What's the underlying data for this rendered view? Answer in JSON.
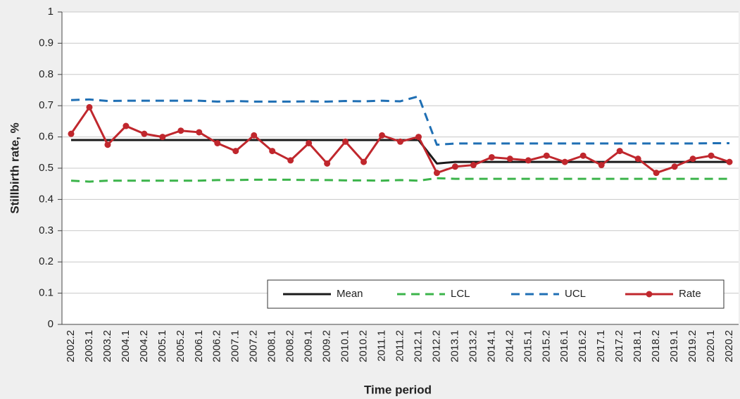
{
  "chart_data": {
    "type": "line",
    "y_label": "Stillbirth rate, %",
    "x_label": "Time period",
    "categories": [
      "2002.2",
      "2003.1",
      "2003.2",
      "2004.1",
      "2004.2",
      "2005.1",
      "2005.2",
      "2006.1",
      "2006.2",
      "2007.1",
      "2007.2",
      "2008.1",
      "2008.2",
      "2009.1",
      "2009.2",
      "2010.1",
      "2010.2",
      "2011.1",
      "2011.2",
      "2012.1",
      "2012.2",
      "2013.1",
      "2013.2",
      "2014.1",
      "2014.2",
      "2015.1",
      "2015.2",
      "2016.1",
      "2016.2",
      "2017.1",
      "2017.2",
      "2018.1",
      "2018.2",
      "2019.1",
      "2019.2",
      "2020.1",
      "2020.2"
    ],
    "series": [
      {
        "name": "Mean",
        "color": "#1a1a1a",
        "dash": false,
        "markers": false,
        "values": [
          0.59,
          0.59,
          0.59,
          0.59,
          0.59,
          0.59,
          0.59,
          0.59,
          0.59,
          0.59,
          0.59,
          0.59,
          0.59,
          0.59,
          0.59,
          0.59,
          0.59,
          0.59,
          0.59,
          0.59,
          0.515,
          0.52,
          0.52,
          0.52,
          0.52,
          0.52,
          0.52,
          0.52,
          0.52,
          0.52,
          0.52,
          0.52,
          0.52,
          0.52,
          0.52,
          0.52,
          0.52
        ]
      },
      {
        "name": "LCL",
        "color": "#3cb44b",
        "dash": true,
        "markers": false,
        "values": [
          0.46,
          0.457,
          0.46,
          0.46,
          0.46,
          0.46,
          0.46,
          0.46,
          0.462,
          0.462,
          0.463,
          0.463,
          0.463,
          0.462,
          0.462,
          0.461,
          0.461,
          0.46,
          0.462,
          0.46,
          0.468,
          0.466,
          0.466,
          0.466,
          0.466,
          0.466,
          0.466,
          0.466,
          0.466,
          0.466,
          0.466,
          0.466,
          0.466,
          0.466,
          0.466,
          0.466,
          0.466
        ]
      },
      {
        "name": "UCL",
        "color": "#1f6fb4",
        "dash": true,
        "markers": false,
        "values": [
          0.718,
          0.72,
          0.715,
          0.716,
          0.716,
          0.716,
          0.716,
          0.716,
          0.713,
          0.715,
          0.713,
          0.713,
          0.713,
          0.714,
          0.713,
          0.715,
          0.714,
          0.716,
          0.714,
          0.73,
          0.575,
          0.579,
          0.579,
          0.579,
          0.579,
          0.579,
          0.579,
          0.579,
          0.579,
          0.579,
          0.579,
          0.579,
          0.579,
          0.579,
          0.579,
          0.58,
          0.58
        ]
      },
      {
        "name": "Rate",
        "color": "#c0272d",
        "dash": false,
        "markers": true,
        "values": [
          0.61,
          0.695,
          0.575,
          0.635,
          0.61,
          0.6,
          0.62,
          0.615,
          0.58,
          0.555,
          0.605,
          0.555,
          0.525,
          0.58,
          0.515,
          0.585,
          0.52,
          0.605,
          0.585,
          0.6,
          0.485,
          0.505,
          0.51,
          0.535,
          0.53,
          0.525,
          0.54,
          0.52,
          0.54,
          0.51,
          0.555,
          0.53,
          0.485,
          0.505,
          0.53,
          0.54,
          0.52
        ]
      }
    ],
    "ylim": [
      0,
      1
    ],
    "yticks": [
      0,
      0.1,
      0.2,
      0.3,
      0.4,
      0.5,
      0.6,
      0.7,
      0.8,
      0.9,
      1
    ],
    "grid": true,
    "legend": "lower right"
  }
}
